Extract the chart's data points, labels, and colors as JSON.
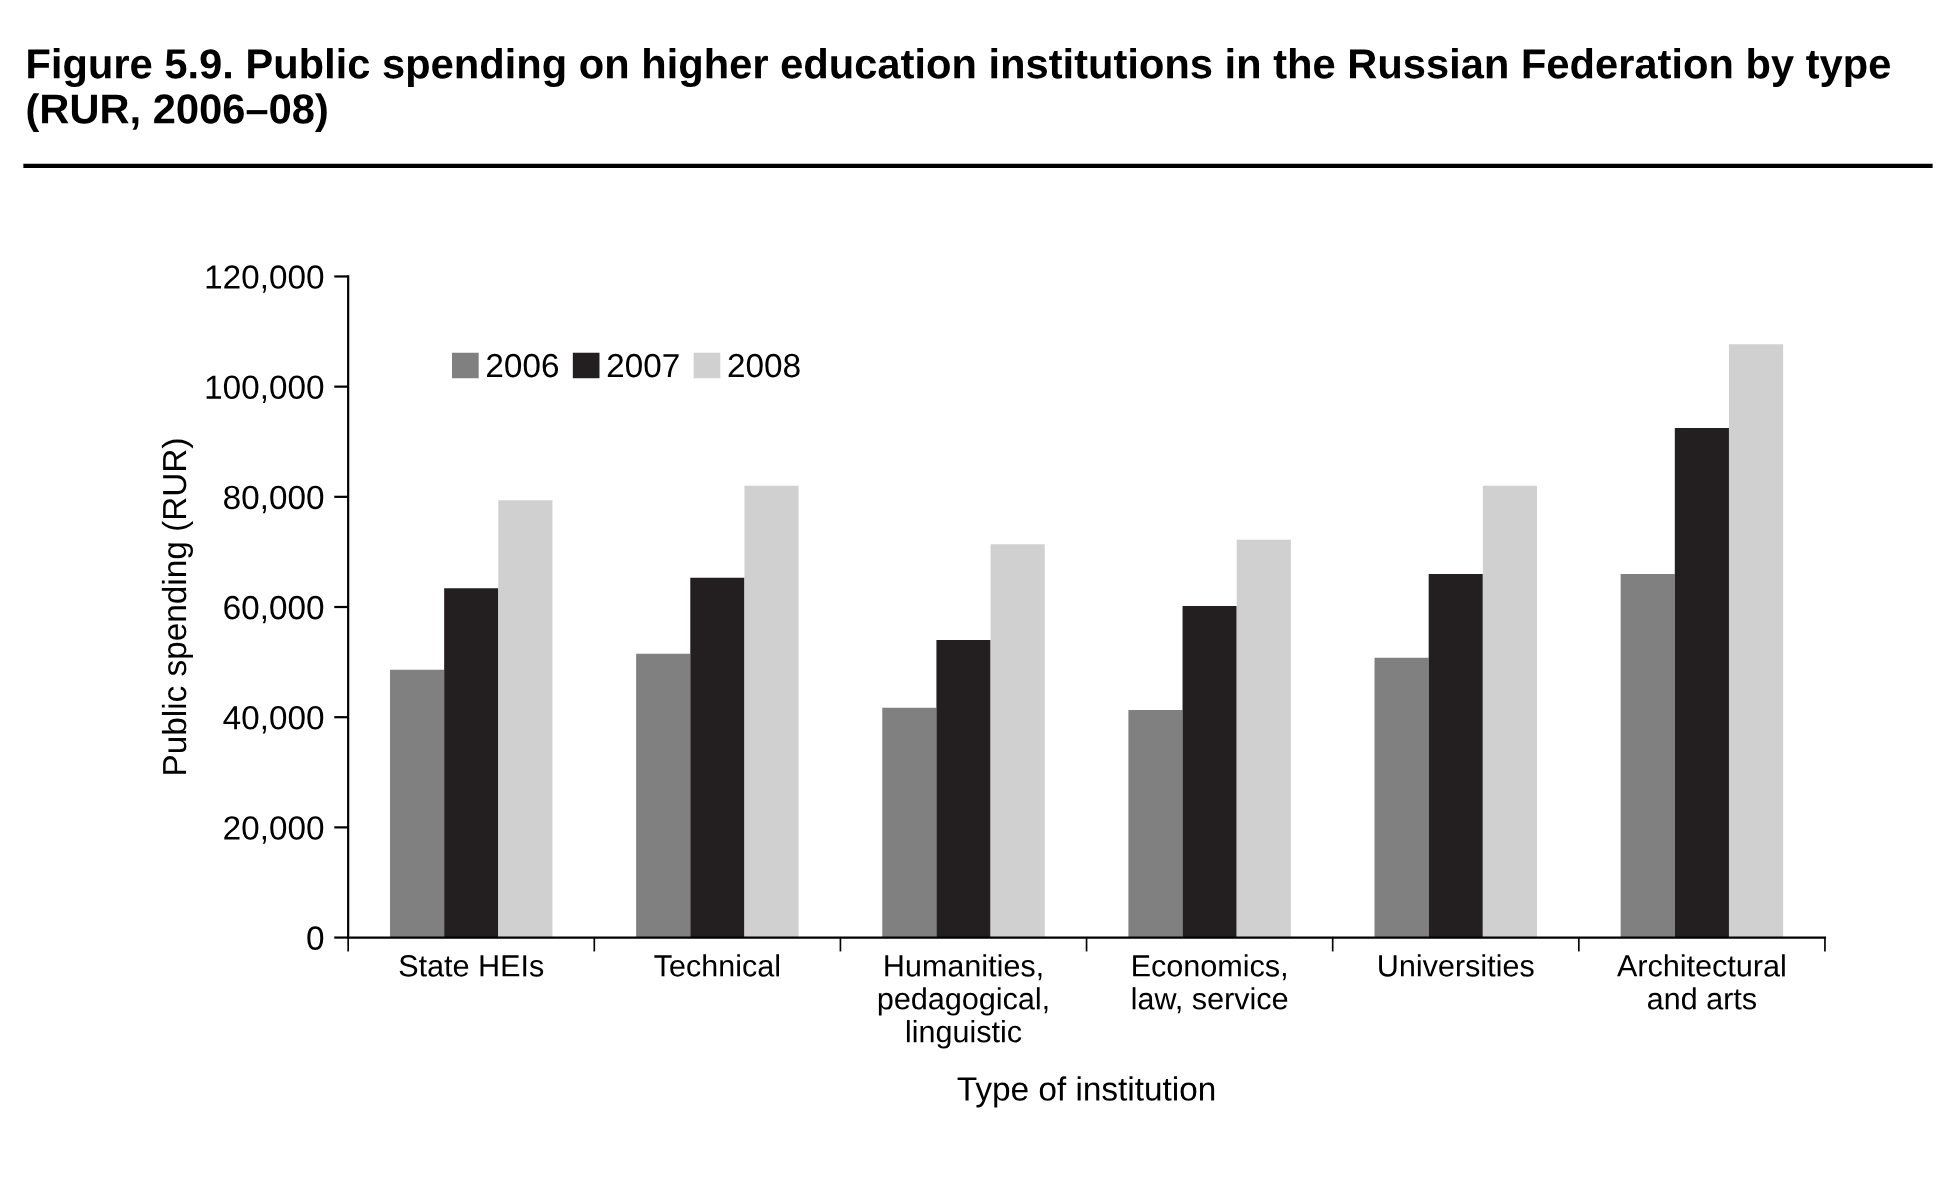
{
  "chart_data": {
    "type": "bar",
    "title": "Figure 5.9. Public spending on higher education institutions in the Russian Federation by type (RUR, 2006–08)",
    "xlabel": "Type of institution",
    "ylabel": "Public spending (RUR)",
    "categories": [
      "State HEIs",
      "Technical",
      "Humanities,\npedagogical,\nlinguistic",
      "Economics,\nlaw, service",
      "Universities",
      "Architectural\nand arts"
    ],
    "series": [
      {
        "name": "2006",
        "color": "#808080",
        "values": [
          48600,
          51500,
          41700,
          41300,
          50800,
          66000
        ]
      },
      {
        "name": "2007",
        "color": "#231f20",
        "values": [
          63400,
          65300,
          54000,
          60200,
          66000,
          92500
        ]
      },
      {
        "name": "2008",
        "color": "#d0d0d0",
        "values": [
          79400,
          82000,
          71400,
          72200,
          82000,
          107700
        ]
      }
    ],
    "ylim": [
      0,
      120000
    ],
    "yticks": [
      {
        "value": 0,
        "label": "0"
      },
      {
        "value": 20000,
        "label": "20,000"
      },
      {
        "value": 40000,
        "label": "40,000"
      },
      {
        "value": 60000,
        "label": "60,000"
      },
      {
        "value": 80000,
        "label": "80,000"
      },
      {
        "value": 100000,
        "label": "100,000"
      },
      {
        "value": 120000,
        "label": "120,000"
      }
    ],
    "legend": "top left",
    "grid": false
  }
}
